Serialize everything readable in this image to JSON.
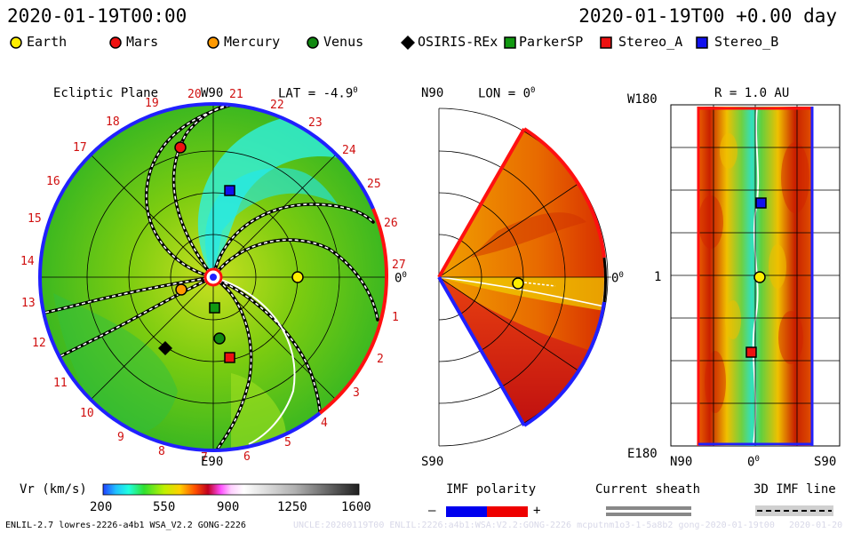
{
  "header": {
    "left_time": "2020-01-19T00:00",
    "right_time": "2020-01-19T00 +0.00 day"
  },
  "legend": [
    {
      "label": "Earth",
      "color": "#ffee00",
      "shape": "circle"
    },
    {
      "label": "Mars",
      "color": "#ee1111",
      "shape": "circle"
    },
    {
      "label": "Mercury",
      "color": "#ff9900",
      "shape": "circle"
    },
    {
      "label": "Venus",
      "color": "#118811",
      "shape": "circle"
    },
    {
      "label": "OSIRIS-REx",
      "color": "#000000",
      "shape": "diamond"
    },
    {
      "label": "ParkerSP",
      "color": "#119911",
      "shape": "square"
    },
    {
      "label": "Stereo_A",
      "color": "#ee1111",
      "shape": "square"
    },
    {
      "label": "Stereo_B",
      "color": "#1111ee",
      "shape": "square"
    }
  ],
  "ecliptic": {
    "title": "Ecliptic Plane",
    "top_label": "W90",
    "lat_label": "LAT = -4.9",
    "deg": "0",
    "bottom_label": "E90",
    "right_label": "0",
    "carrington": [
      "20",
      "21",
      "22",
      "23",
      "24",
      "25",
      "26",
      "27",
      "1",
      "2",
      "3",
      "4",
      "5",
      "6",
      "7",
      "8",
      "9",
      "10",
      "11",
      "12",
      "13",
      "14",
      "15",
      "16",
      "17",
      "18",
      "19"
    ]
  },
  "meridional": {
    "top_label": "N90",
    "lon_label": "LON = 0",
    "deg": "0",
    "bottom_label": "S90",
    "right_label": "0"
  },
  "radial": {
    "title": "R = 1.0 AU",
    "top_left": "W180",
    "mid_left": "1",
    "bottom_left": "E180",
    "x_left": "N90",
    "x_mid": "0",
    "x_right": "S90"
  },
  "colorbar": {
    "label": "Vr (km/s)",
    "ticks": [
      "200",
      "550",
      "900",
      "1250",
      "1600"
    ]
  },
  "imf": {
    "label": "IMF polarity",
    "minus": "–",
    "plus": "+",
    "colors": [
      "#0000ee",
      "#ee0000"
    ]
  },
  "sheath_label": "Current sheath",
  "imf3d_label": "3D IMF line",
  "footer": "ENLIL-2.7 lowres-2226-a4b1 WSA_V2.2 GONG-2226",
  "footer_faint": "UNCLE:20200119T00 ENLIL:2226:a4b1:WSA:V2.2:GONG-2226 mcputnm1o3-1-5a8b2 gong-2020-01-19t00",
  "footer_faint_right": "2020-01-20"
}
